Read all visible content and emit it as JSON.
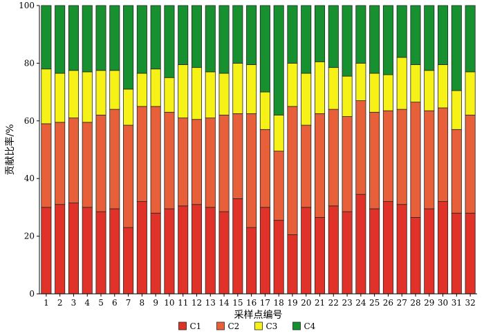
{
  "chart_data": {
    "type": "bar",
    "stacked": true,
    "title": "",
    "xlabel": "采样点编号",
    "ylabel": "贡献比率/%",
    "ylim": [
      0,
      100
    ],
    "yticks": [
      0,
      20,
      40,
      60,
      80,
      100
    ],
    "grid": false,
    "legend_position": "bottom",
    "categories": [
      "1",
      "2",
      "3",
      "4",
      "5",
      "6",
      "7",
      "8",
      "9",
      "10",
      "11",
      "12",
      "13",
      "14",
      "15",
      "16",
      "17",
      "18",
      "19",
      "20",
      "21",
      "22",
      "23",
      "24",
      "25",
      "26",
      "27",
      "28",
      "29",
      "30",
      "31",
      "32"
    ],
    "series": [
      {
        "name": "C1",
        "color": "#e03228",
        "values": [
          30,
          31,
          31.5,
          30,
          28.5,
          29.5,
          23,
          32,
          28,
          29.5,
          30.5,
          31,
          30,
          28.5,
          33,
          23,
          30,
          25.5,
          20.5,
          30,
          26.5,
          30.5,
          28.5,
          34.5,
          29.5,
          32,
          31,
          26.5,
          29.5,
          32,
          28,
          28
        ]
      },
      {
        "name": "C2",
        "color": "#e8603a",
        "values": [
          29,
          28.5,
          29.5,
          29.5,
          33.5,
          34.5,
          35.5,
          33,
          37,
          33.5,
          30.5,
          29.5,
          31,
          33.5,
          29.5,
          39.5,
          27,
          24,
          44.5,
          28.5,
          36,
          33.5,
          33,
          32.5,
          33.5,
          31.5,
          33,
          40,
          34,
          32.5,
          29,
          34
        ]
      },
      {
        "name": "C3",
        "color": "#f6f217",
        "values": [
          19,
          17,
          16.5,
          17.5,
          15.5,
          13.5,
          12.5,
          11.5,
          13,
          12,
          18.5,
          18,
          16,
          14.5,
          17.5,
          17,
          13,
          12.5,
          15,
          18,
          18,
          14.5,
          14,
          13,
          13.5,
          12.5,
          18,
          13,
          14,
          15,
          13.5,
          15
        ]
      },
      {
        "name": "C4",
        "color": "#17902f",
        "values": [
          22,
          23.5,
          22.5,
          23,
          22.5,
          22.5,
          29,
          23.5,
          22,
          25,
          20.5,
          21.5,
          23,
          23.5,
          20,
          20.5,
          30,
          38,
          20,
          23.5,
          19.5,
          21.5,
          24.5,
          20,
          23.5,
          24,
          18,
          20.5,
          22.5,
          20.5,
          29.5,
          23
        ]
      }
    ]
  }
}
